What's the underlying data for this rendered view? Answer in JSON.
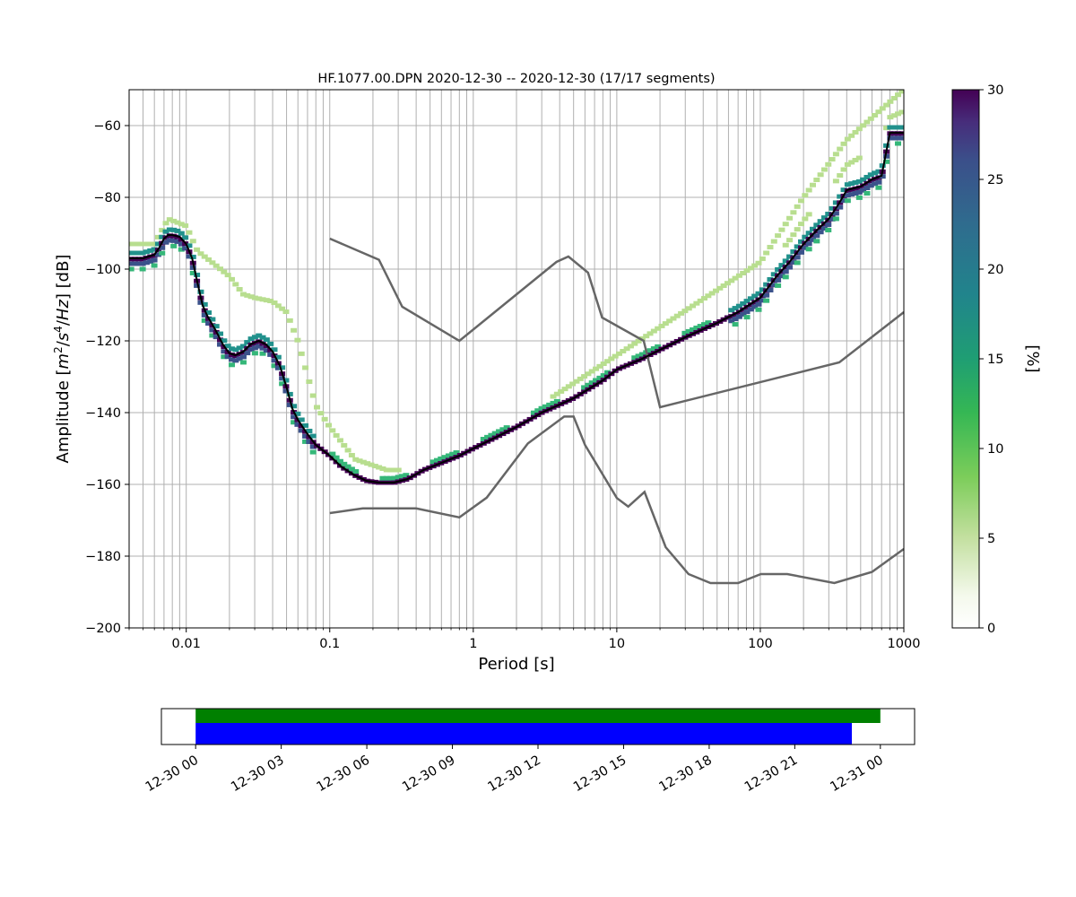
{
  "chart_data": [
    {
      "type": "heatmap",
      "title": "HF.1077.00.DPN   2020-12-30 -- 2020-12-30  (17/17 segments)",
      "xlabel": "Period [s]",
      "ylabel": "Amplitude [$m^2/s^4/Hz$] [dB]",
      "ylabel_parts": [
        "Amplitude [",
        "m",
        "2",
        "/",
        "s",
        "4",
        "/",
        "Hz",
        "] [dB]"
      ],
      "x_scale": "log",
      "xlim": [
        0.004,
        1000
      ],
      "ylim": [
        -200,
        -50
      ],
      "x_tick_labels": [
        "0.01",
        "0.1",
        "1",
        "10",
        "100",
        "1000"
      ],
      "x_tick_values": [
        0.01,
        0.1,
        1,
        10,
        100,
        1000
      ],
      "y_tick_labels": [
        "−60",
        "−80",
        "−100",
        "−120",
        "−140",
        "−160",
        "−180",
        "−200"
      ],
      "y_tick_values": [
        -60,
        -80,
        -100,
        -120,
        -140,
        -160,
        -180,
        -200
      ],
      "grid": true,
      "colorbar": {
        "label": "[%]",
        "range": [
          0,
          30
        ],
        "tick_labels": [
          "0",
          "5",
          "10",
          "15",
          "20",
          "25",
          "30"
        ],
        "tick_values": [
          0,
          5,
          10,
          15,
          20,
          25,
          30
        ],
        "colormap": "viridis_r"
      },
      "mean_psd": {
        "x": [
          0.004,
          0.005,
          0.006,
          0.0065,
          0.007,
          0.0075,
          0.008,
          0.009,
          0.01,
          0.011,
          0.012,
          0.013,
          0.014,
          0.016,
          0.018,
          0.02,
          0.022,
          0.025,
          0.028,
          0.032,
          0.036,
          0.04,
          0.045,
          0.05,
          0.055,
          0.06,
          0.07,
          0.08,
          0.1,
          0.12,
          0.15,
          0.18,
          0.22,
          0.28,
          0.35,
          0.45,
          0.6,
          0.8,
          1,
          1.5,
          2,
          3,
          5,
          8,
          10,
          15,
          20,
          30,
          50,
          70,
          100,
          130,
          160,
          200,
          250,
          300,
          350,
          400,
          500,
          600,
          700,
          800,
          1000
        ],
        "y": [
          -97,
          -97,
          -96,
          -94,
          -91.5,
          -90.5,
          -90.5,
          -91,
          -93,
          -97,
          -104,
          -110,
          -113,
          -117,
          -121,
          -123.5,
          -124,
          -123,
          -121,
          -120,
          -121,
          -123,
          -127,
          -133,
          -139,
          -142,
          -146,
          -149,
          -152,
          -155,
          -157.5,
          -159,
          -159.5,
          -159.5,
          -158.5,
          -156,
          -154,
          -152,
          -150,
          -146.5,
          -144,
          -140,
          -136,
          -131,
          -128,
          -125,
          -122.5,
          -119,
          -115,
          -112,
          -108,
          -102,
          -98,
          -93,
          -89,
          -86,
          -82,
          -78,
          -77,
          -75,
          -74,
          -62,
          -62
        ]
      },
      "noise_models": [
        {
          "x": [
            0.1,
            0.22,
            0.32,
            0.8,
            3.8,
            4.6,
            6.3,
            7.9,
            15.4,
            20,
            354.8,
            1000
          ],
          "y": [
            -91.5,
            -97.4,
            -110.5,
            -120,
            -98,
            -96.5,
            -101,
            -113.5,
            -120,
            -138.5,
            -126,
            -112
          ]
        },
        {
          "x": [
            0.1,
            0.17,
            0.4,
            0.8,
            1.24,
            2.4,
            4.3,
            5.0,
            6.0,
            10,
            12,
            15.6,
            21.9,
            31.6,
            45,
            70,
            101,
            154,
            328,
            600,
            1000
          ],
          "y": [
            -168,
            -166.7,
            -166.7,
            -169.2,
            -163.7,
            -148.6,
            -141.1,
            -141.1,
            -149,
            -163.8,
            -166.2,
            -162.1,
            -177.5,
            -185,
            -187.5,
            -187.5,
            -185,
            -185,
            -187.5,
            -184.4,
            -178
          ]
        }
      ]
    },
    {
      "type": "timeline",
      "x_tick_labels": [
        "12-30 00",
        "12-30 03",
        "12-30 06",
        "12-30 09",
        "12-30 12",
        "12-30 15",
        "12-30 18",
        "12-30 21",
        "12-31 00"
      ],
      "x_tick_hours": [
        0,
        3,
        6,
        9,
        12,
        15,
        18,
        21,
        24
      ],
      "xlim_hours": [
        -1.2,
        25.2
      ],
      "bars": [
        {
          "start_hour": 0,
          "end_hour": 24,
          "color": "#008000"
        },
        {
          "start_hour": 0,
          "end_hour": 23,
          "color": "#0000ff"
        }
      ]
    }
  ]
}
